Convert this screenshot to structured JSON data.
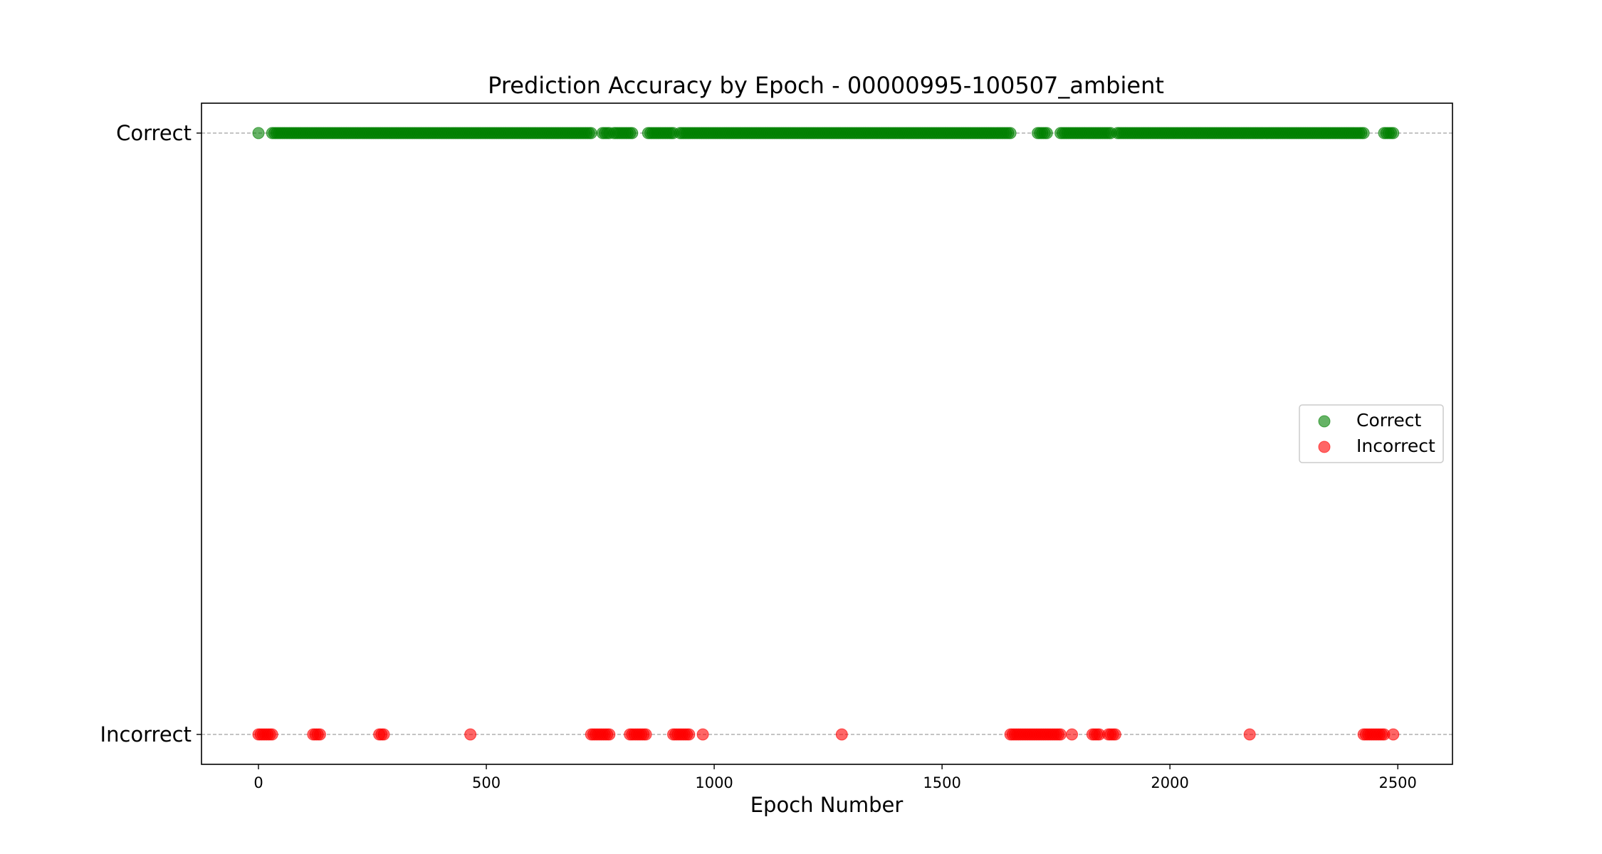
{
  "chart_data": {
    "type": "scatter",
    "title": "Prediction Accuracy by Epoch - 00000995-100507_ambient",
    "xlabel": "Epoch Number",
    "ylabel": "",
    "xlim": [
      -125,
      2620
    ],
    "xticks": [
      0,
      500,
      1000,
      1500,
      2000,
      2500
    ],
    "y_categories": [
      "Incorrect",
      "Correct"
    ],
    "grid": "horizontal dashed at category levels",
    "legend": {
      "placement": "right",
      "entries": [
        "Correct",
        "Incorrect"
      ]
    },
    "series": [
      {
        "name": "Correct",
        "color": "#008000",
        "y": "Correct",
        "x_ranges": [
          [
            0,
            3
          ],
          [
            30,
            270
          ],
          [
            275,
            730
          ],
          [
            755,
            770
          ],
          [
            780,
            820
          ],
          [
            855,
            910
          ],
          [
            925,
            1650
          ],
          [
            1710,
            1730
          ],
          [
            1760,
            1870
          ],
          [
            1885,
            2425
          ],
          [
            2470,
            2490
          ]
        ]
      },
      {
        "name": "Incorrect",
        "color": "#ff0000",
        "y": "Incorrect",
        "x_ranges": [
          [
            0,
            30
          ],
          [
            120,
            135
          ],
          [
            265,
            275
          ],
          [
            465,
            465
          ],
          [
            730,
            770
          ],
          [
            815,
            850
          ],
          [
            910,
            945
          ],
          [
            975,
            975
          ],
          [
            1280,
            1280
          ],
          [
            1650,
            1760
          ],
          [
            1785,
            1785
          ],
          [
            1830,
            1845
          ],
          [
            1865,
            1880
          ],
          [
            2175,
            2175
          ],
          [
            2425,
            2470
          ],
          [
            2490,
            2490
          ]
        ]
      }
    ]
  }
}
